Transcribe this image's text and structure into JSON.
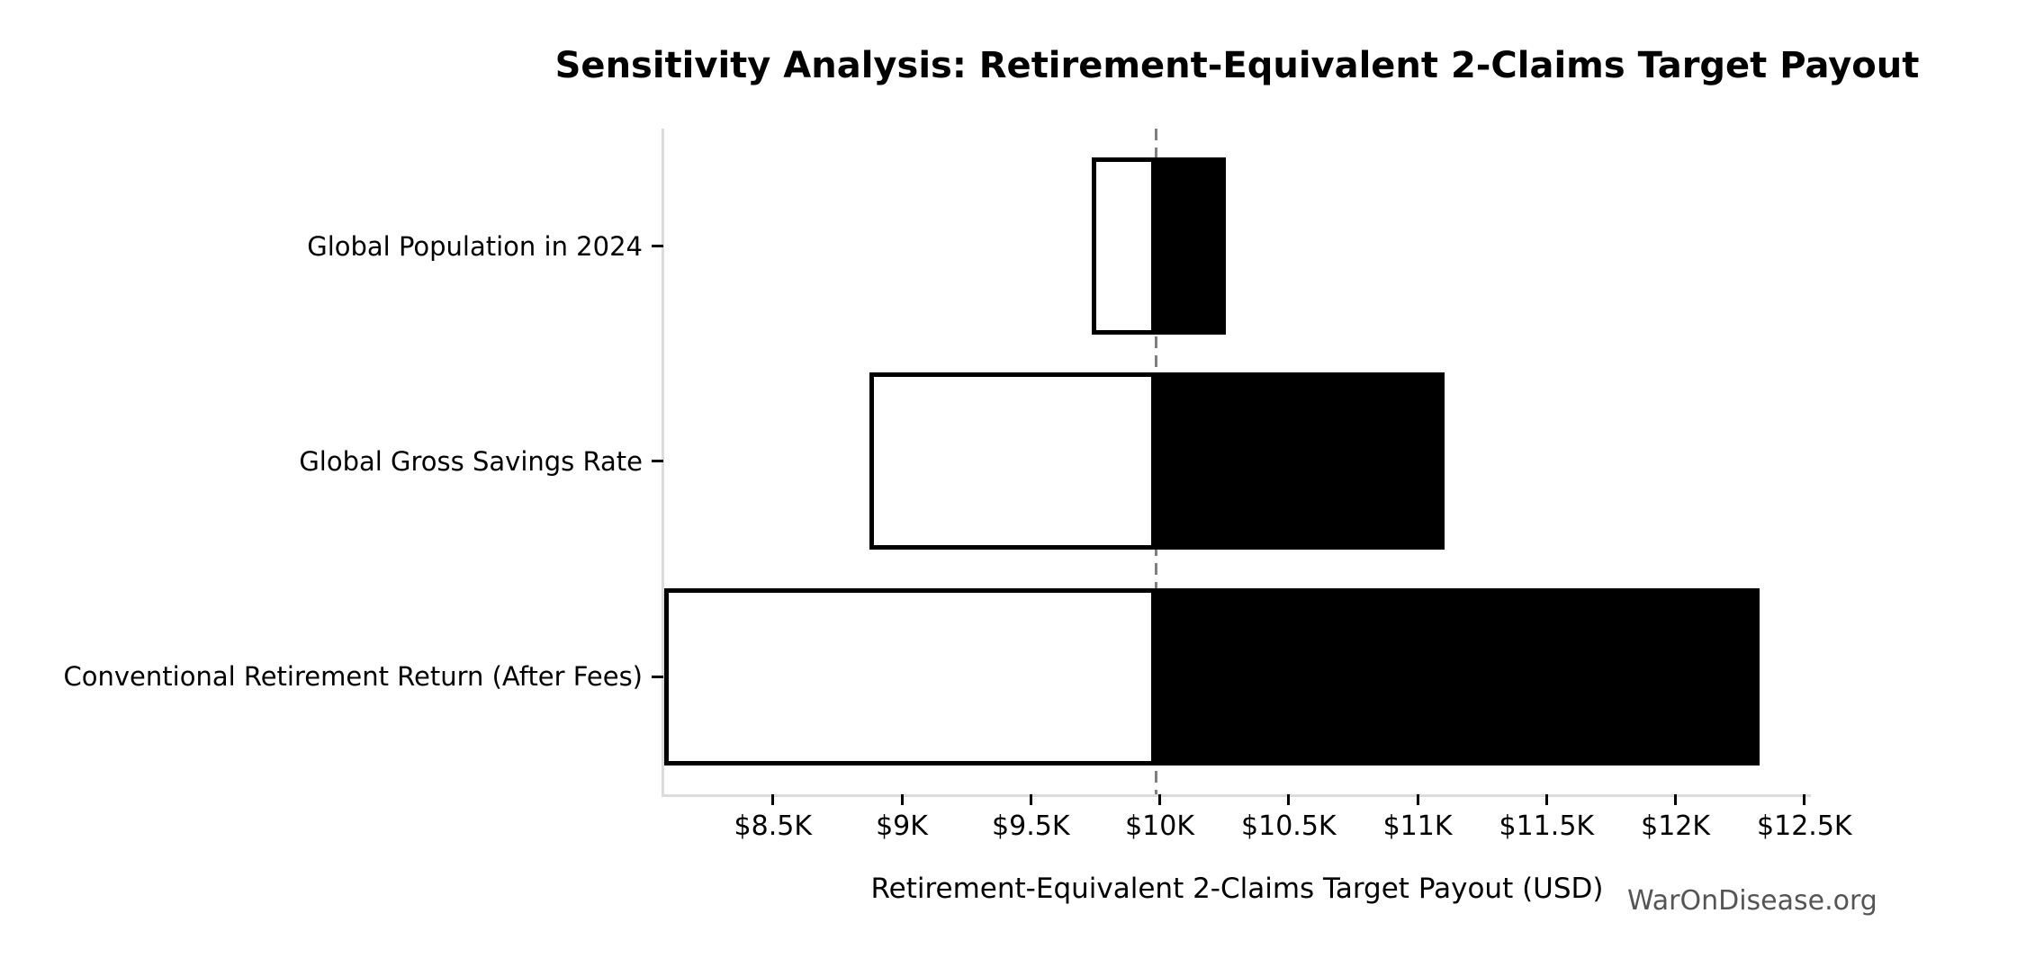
{
  "figure": {
    "title": "Sensitivity Analysis: Retirement-Equivalent 2-Claims Target Payout",
    "xlabel": "Retirement-Equivalent 2-Claims Target Payout (USD)",
    "watermark": "WarOnDisease.org"
  },
  "chart_data": {
    "type": "bar",
    "subtype": "horizontal-tornado",
    "title": "Sensitivity Analysis: Retirement-Equivalent 2-Claims Target Payout",
    "xlabel": "Retirement-Equivalent 2-Claims Target Payout (USD)",
    "ylabel": "",
    "categories": [
      "Global Population in 2024",
      "Global Gross Savings Rate",
      "Conventional Retirement Return (After Fees)"
    ],
    "series": [
      {
        "name": "low",
        "fill": "#ffffff",
        "values": [
          9735,
          8875,
          8080
        ]
      },
      {
        "name": "high",
        "fill": "#000000",
        "values": [
          10255,
          11105,
          12325
        ]
      }
    ],
    "baseline_value": 9985,
    "xlim": [
      8075,
      12525
    ],
    "x_tick_values": [
      8500,
      9000,
      9500,
      10000,
      10500,
      11000,
      11500,
      12000,
      12500
    ],
    "x_tick_labels": [
      "$8.5K",
      "$9K",
      "$9.5K",
      "$10K",
      "$10.5K",
      "$11K",
      "$11.5K",
      "$12K",
      "$12.5K"
    ],
    "grid": false,
    "legend": false,
    "watermark": "WarOnDisease.org",
    "colors": {
      "bar_edge": "#000000",
      "high_fill": "#000000",
      "low_fill": "#ffffff",
      "baseline_line": "#7f7f7f",
      "spine": "#dcdcdc",
      "tick": "#000000",
      "watermark_text": "#555555"
    }
  }
}
